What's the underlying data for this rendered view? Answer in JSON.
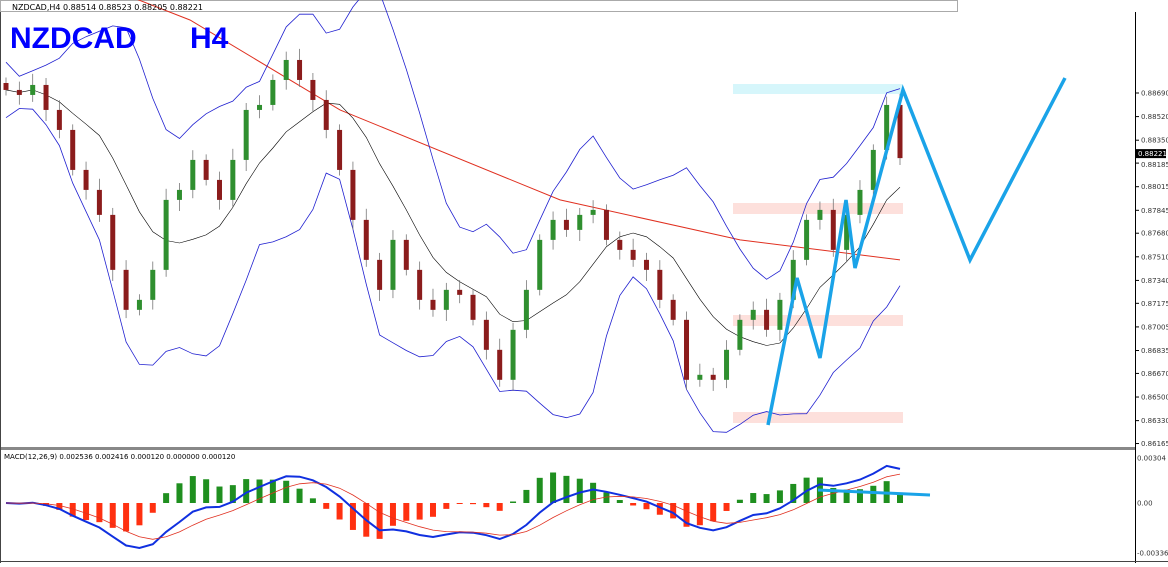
{
  "header": {
    "symbol_line": "NZDCAD,H4  0.88514 0.88523 0.88205 0.88221",
    "title_symbol": "NZDCAD",
    "title_timeframe": "H4"
  },
  "chart_data": {
    "type": "candlestick",
    "symbol": "NZDCAD",
    "timeframe": "H4",
    "last_bar": {
      "open": 0.88514,
      "high": 0.88523,
      "low": 0.88205,
      "close": 0.88221
    },
    "current_price_label": "0.88221",
    "y_ticks": [
      "0.88690",
      "0.88520",
      "0.88350",
      "0.88185",
      "0.88015",
      "0.87845",
      "0.87680",
      "0.87510",
      "0.87340",
      "0.87175",
      "0.87005",
      "0.86835",
      "0.86670",
      "0.86500",
      "0.86330",
      "0.86165"
    ],
    "ylim": [
      0.8614,
      0.8896
    ],
    "closes": [
      0.88712,
      0.88676,
      0.88748,
      0.88568,
      0.88424,
      0.88136,
      0.87992,
      0.87812,
      0.87416,
      0.87128,
      0.872,
      0.87416,
      0.8792,
      0.87992,
      0.88208,
      0.88064,
      0.8792,
      0.88208,
      0.88568,
      0.88604,
      0.88784,
      0.88928,
      0.88784,
      0.8864,
      0.88424,
      0.88136,
      0.87776,
      0.87488,
      0.87272,
      0.87632,
      0.87416,
      0.872,
      0.87128,
      0.87272,
      0.87236,
      0.87056,
      0.8684,
      0.86624,
      0.86984,
      0.87272,
      0.87632,
      0.87776,
      0.87704,
      0.87812,
      0.87848,
      0.87632,
      0.8756,
      0.87488,
      0.87416,
      0.872,
      0.87056,
      0.86624,
      0.8666,
      0.86624,
      0.8684,
      0.87056,
      0.87128,
      0.86984,
      0.872,
      0.87488,
      0.87776,
      0.87848,
      0.8756,
      0.87812,
      0.87992,
      0.8828,
      0.88604,
      0.88221
    ],
    "long_ma": [
      0.89216,
      0.88568,
      0.8792,
      0.87632,
      0.87488
    ],
    "indicators": [
      "Bollinger Bands",
      "Moving Average",
      "MACD(12,26,9)"
    ],
    "colors": {
      "bull": "#2f8f2f",
      "bear": "#8b1c1c",
      "bands": "#2020d0",
      "mid": "#000000",
      "long_ma": "#e03020",
      "drawing": "#1aa3e8",
      "zone_top": "#d6f6fb",
      "zone": "#fde0dc"
    }
  },
  "macd": {
    "label": "MACD(12,26,9) 0.002536 0.002416 0.000120 0.000000 0.000120",
    "y_ticks": [
      "0.00304",
      "0.00",
      "-0.003365"
    ],
    "ylim": [
      -0.003365,
      0.00304
    ]
  }
}
